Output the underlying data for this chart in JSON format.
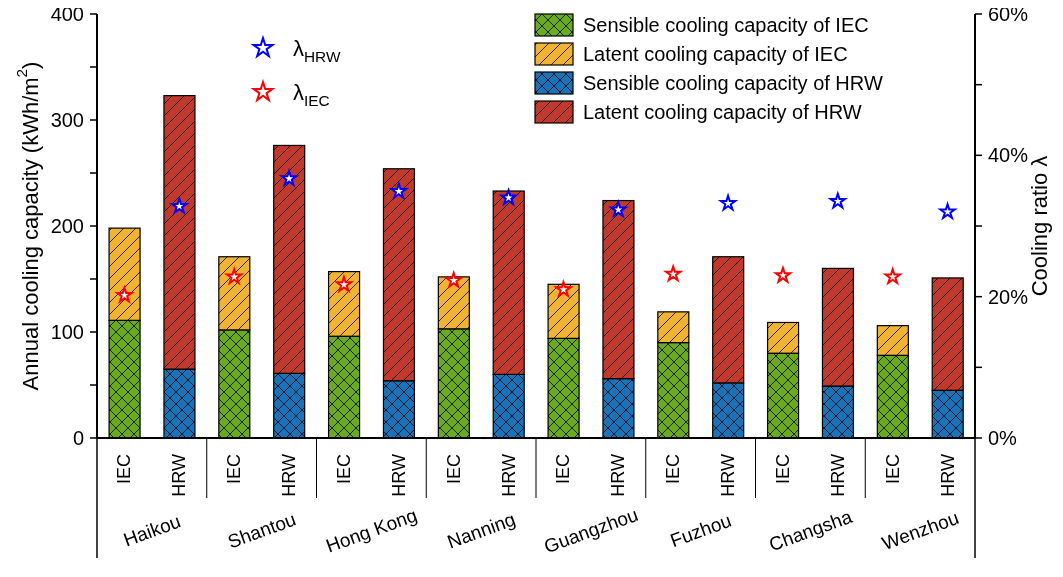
{
  "chart_data": {
    "type": "bar",
    "stacked": true,
    "ylabel": "Annual cooling capacity (kWh/m$^{2}$)",
    "y2label": "Cooling ratio λ",
    "categories": [
      "IEC",
      "HRW",
      "IEC",
      "HRW",
      "IEC",
      "HRW",
      "IEC",
      "HRW",
      "IEC",
      "HRW",
      "IEC",
      "HRW",
      "IEC",
      "HRW",
      "IEC",
      "HRW"
    ],
    "annotations": [
      "Haikou",
      "Shantou",
      "Hong Kong",
      "Nanning",
      "Guangzhou",
      "Fuzhou",
      "Changsha",
      "Wenzhou"
    ],
    "series": [
      {
        "name": "Sensible cooling capacity of IEC",
        "color": "#6aaa1e",
        "values": [
          111,
          null,
          102,
          null,
          96,
          null,
          103,
          null,
          94,
          null,
          90,
          null,
          80,
          null,
          78,
          null
        ]
      },
      {
        "name": "Latent cooling capacity of IEC",
        "color": "#f0b432",
        "values": [
          87,
          null,
          69,
          null,
          61,
          null,
          49,
          null,
          51,
          null,
          29,
          null,
          29,
          null,
          28,
          null
        ]
      },
      {
        "name": "Sensible cooling capacity of HRW",
        "color": "#1a72b8",
        "values": [
          null,
          65,
          null,
          61,
          null,
          54,
          null,
          60,
          null,
          56,
          null,
          52,
          null,
          49,
          null,
          45
        ]
      },
      {
        "name": "Latent cooling capacity of HRW",
        "color": "#c0392b",
        "values": [
          null,
          258,
          null,
          215,
          null,
          200,
          null,
          173,
          null,
          168,
          null,
          119,
          null,
          111,
          null,
          106
        ]
      },
      {
        "name": "λ$_{HRW}$",
        "type": "scatter",
        "axis": "y2",
        "color": "#0000ff",
        "values": [
          null,
          32.8,
          null,
          36.7,
          null,
          34.9,
          null,
          34.0,
          null,
          32.3,
          null,
          33.2,
          null,
          33.5,
          null,
          32.0
        ]
      },
      {
        "name": "λ$_{IEC}$",
        "type": "scatter",
        "axis": "y2",
        "color": "#ff0000",
        "values": [
          20.2,
          null,
          22.8,
          null,
          21.7,
          null,
          22.3,
          null,
          21.0,
          null,
          23.2,
          null,
          23.0,
          null,
          22.8,
          null
        ]
      }
    ],
    "ylim": [
      0,
      400
    ],
    "yticks": [
      0,
      {
        "value": 50,
        "label": null
      },
      100,
      {
        "value": 150,
        "label": null
      },
      200,
      {
        "value": 250,
        "label": null
      },
      300,
      {
        "value": 350,
        "label": null
      },
      400
    ],
    "y2lim": [
      0,
      60
    ],
    "y2ticks": [
      {
        "value": 0,
        "label": "0%"
      },
      {
        "value": 10,
        "label": null
      },
      {
        "value": 20,
        "label": "20%"
      },
      {
        "value": 30,
        "label": null
      },
      {
        "value": 40,
        "label": "40%"
      },
      {
        "value": 50,
        "label": null
      },
      {
        "value": 60,
        "label": "60%"
      }
    ],
    "marker": "star",
    "grid": false,
    "legend": "top right"
  }
}
